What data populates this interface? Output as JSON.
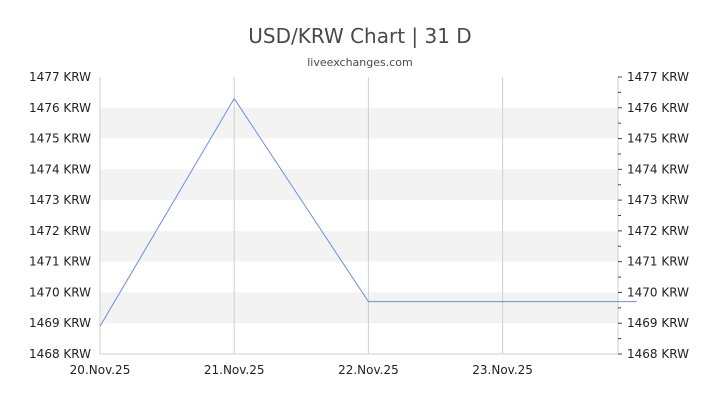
{
  "chart_data": {
    "type": "line",
    "title": "USD/KRW Chart | 31 D",
    "subtitle": "liveexchanges.com",
    "y_unit": "KRW",
    "ylim": [
      1468,
      1477
    ],
    "y_ticks": [
      1468,
      1469,
      1470,
      1471,
      1472,
      1473,
      1474,
      1475,
      1476,
      1477
    ],
    "x_ticks": [
      "20.Nov.25",
      "21.Nov.25",
      "22.Nov.25",
      "23.Nov.25"
    ],
    "series": [
      {
        "color": "#6a8fe0",
        "points": [
          {
            "x": "20.Nov.25",
            "y": 1468.9
          },
          {
            "x": "21.Nov.25",
            "y": 1476.3
          },
          {
            "x": "22.Nov.25",
            "y": 1469.7
          },
          {
            "x": "23.Nov.25",
            "y": 1469.7
          },
          {
            "x": "24.Nov.25",
            "y": 1469.7
          }
        ]
      }
    ],
    "grid": true,
    "y_axis_both_sides": true
  }
}
